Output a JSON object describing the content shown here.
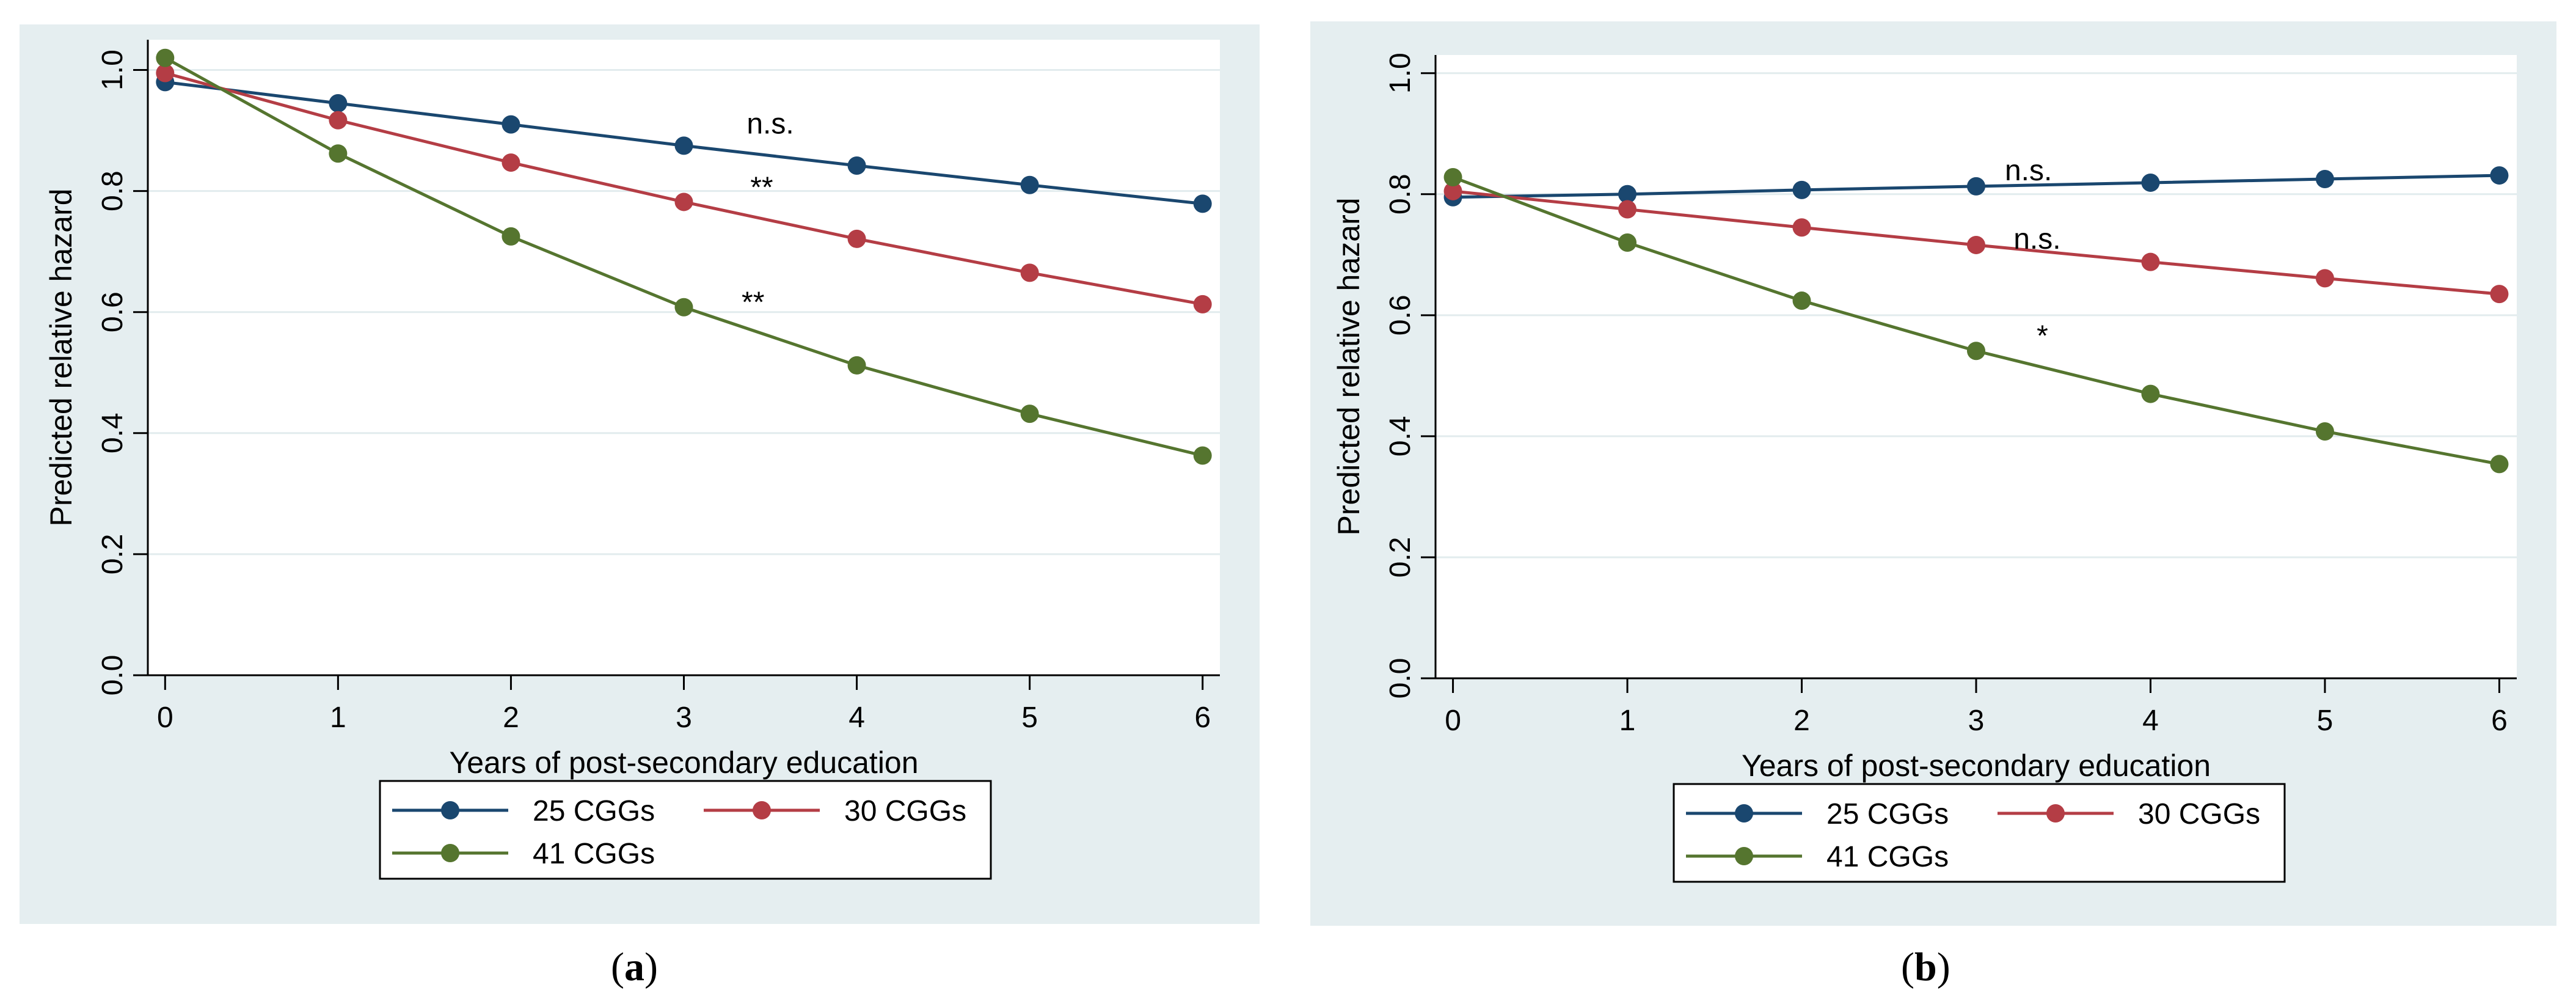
{
  "colors": {
    "panel_bg": "#e5eef0",
    "plot_bg": "#ffffff",
    "grid": "#e2ecee",
    "axis": "#000000",
    "series": [
      "#1a476f",
      "#b43d45",
      "#55752f"
    ]
  },
  "chart_data": [
    {
      "type": "line",
      "panel_label": "a",
      "xlabel": "Years of post-secondary education",
      "ylabel": "Predicted relative hazard",
      "x": [
        0,
        1,
        2,
        3,
        4,
        5,
        6
      ],
      "xticks": [
        "0",
        "1",
        "2",
        "3",
        "4",
        "5",
        "6"
      ],
      "yticks": [
        "0.0",
        "0.2",
        "0.4",
        "0.6",
        "0.8",
        "1.0"
      ],
      "ylim": [
        0,
        1.05
      ],
      "xlim": [
        -0.1,
        6.1
      ],
      "grid": true,
      "legend_position": "bottom",
      "series": [
        {
          "name": "25 CGGs",
          "values": [
            0.98,
            0.945,
            0.91,
            0.875,
            0.842,
            0.81,
            0.779
          ]
        },
        {
          "name": "30 CGGs",
          "values": [
            0.995,
            0.917,
            0.847,
            0.782,
            0.721,
            0.665,
            0.613
          ]
        },
        {
          "name": "41 CGGs",
          "values": [
            1.02,
            0.862,
            0.725,
            0.608,
            0.512,
            0.432,
            0.363
          ]
        }
      ],
      "annotations": [
        {
          "text": "n.s.",
          "x": 3.5,
          "y": 0.895
        },
        {
          "text": "**",
          "x": 3.45,
          "y": 0.79
        },
        {
          "text": "**",
          "x": 3.4,
          "y": 0.6
        }
      ]
    },
    {
      "type": "line",
      "panel_label": "b",
      "xlabel": "Years of post-secondary education",
      "ylabel": "Predicted relative hazard",
      "x": [
        0,
        1,
        2,
        3,
        4,
        5,
        6
      ],
      "xticks": [
        "0",
        "1",
        "2",
        "3",
        "4",
        "5",
        "6"
      ],
      "yticks": [
        "0.0",
        "0.2",
        "0.4",
        "0.6",
        "0.8",
        "1.0"
      ],
      "ylim": [
        0,
        1.03
      ],
      "xlim": [
        -0.1,
        6.1
      ],
      "grid": true,
      "legend_position": "bottom",
      "series": [
        {
          "name": "25 CGGs",
          "values": [
            0.795,
            0.8,
            0.807,
            0.813,
            0.819,
            0.825,
            0.831
          ]
        },
        {
          "name": "30 CGGs",
          "values": [
            0.805,
            0.775,
            0.745,
            0.716,
            0.688,
            0.661,
            0.635
          ]
        },
        {
          "name": "41 CGGs",
          "values": [
            0.828,
            0.72,
            0.624,
            0.541,
            0.47,
            0.408,
            0.354
          ]
        }
      ],
      "annotations": [
        {
          "text": "n.s.",
          "x": 3.3,
          "y": 0.823
        },
        {
          "text": "n.s.",
          "x": 3.35,
          "y": 0.71
        },
        {
          "text": "*",
          "x": 3.38,
          "y": 0.55
        }
      ]
    }
  ]
}
